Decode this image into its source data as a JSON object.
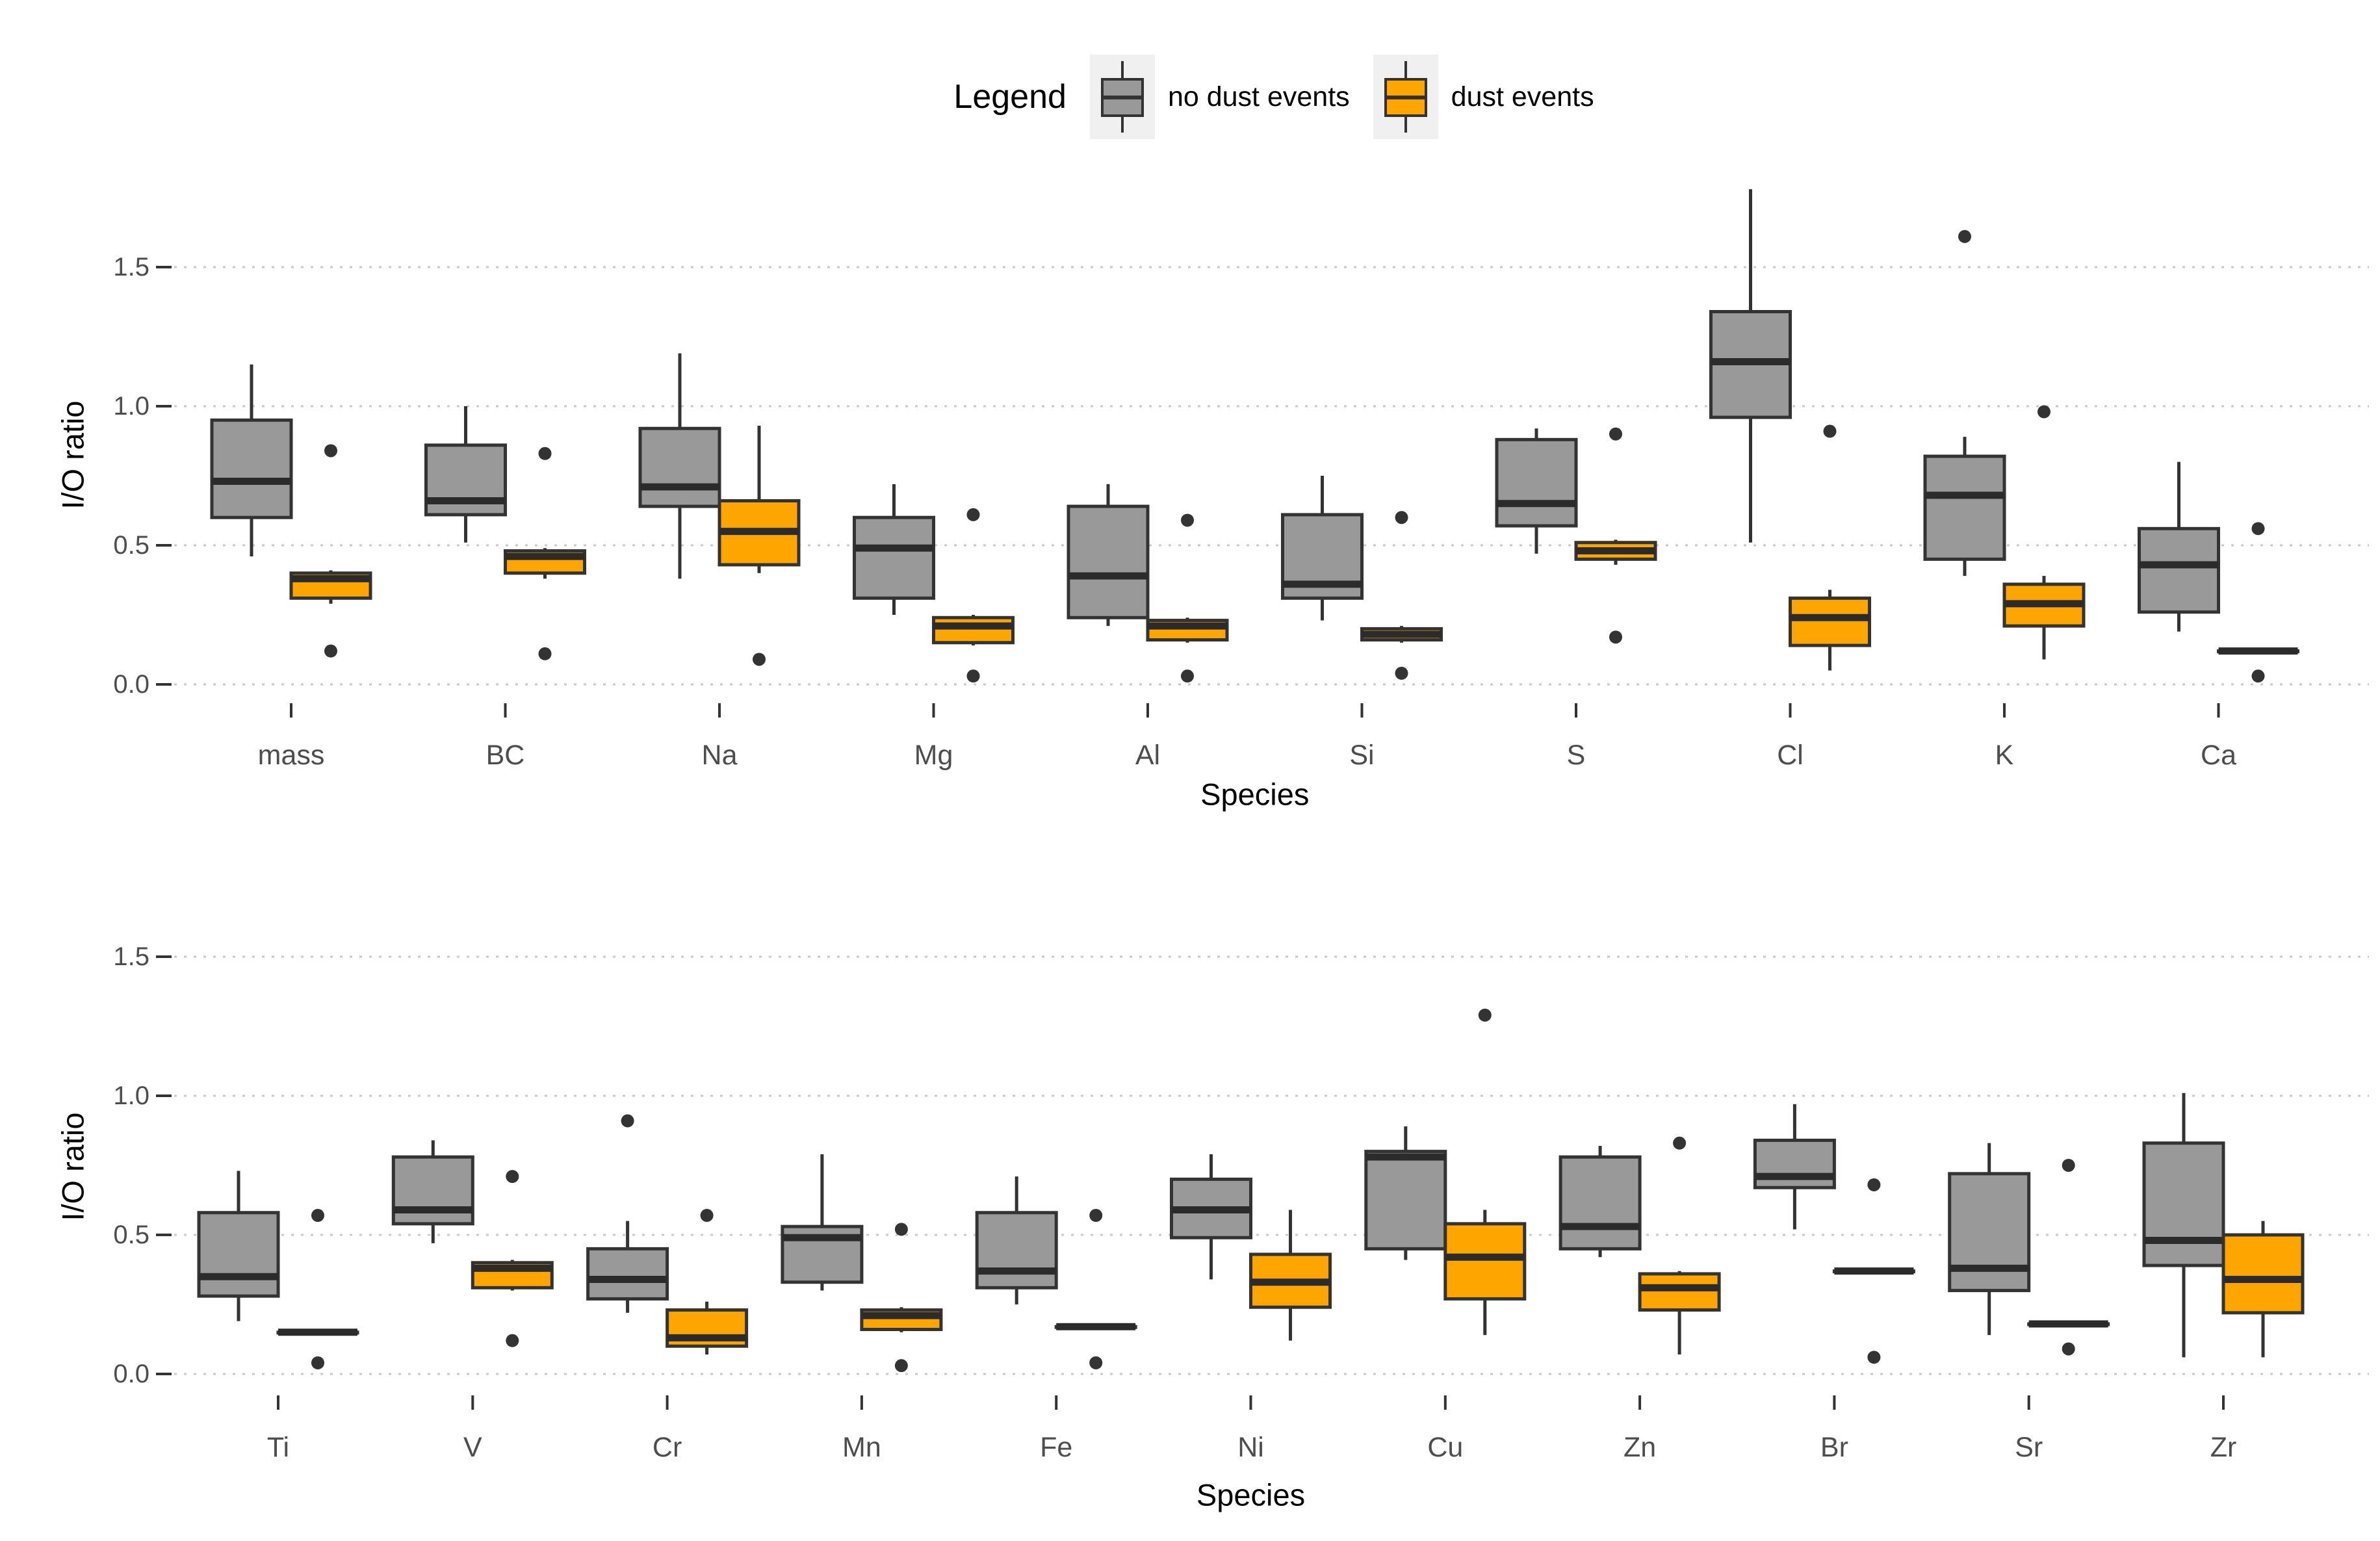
{
  "legend": {
    "title": "Legend",
    "items": [
      {
        "label": "no dust events",
        "color": "#999999"
      },
      {
        "label": "dust events",
        "color": "#FFA500"
      }
    ]
  },
  "colors": {
    "box_border": "#333333",
    "median_line": "#2b2b2b",
    "outlier_dot": "#333333",
    "gridline": "#c9c9c9",
    "tick_mark": "#333333",
    "tick_label": "#4d4d4d",
    "axis_title": "#000000",
    "background": "#ffffff",
    "legend_key_bg": "#f0f0f0"
  },
  "chart_data": {
    "type": "boxplot",
    "title": "",
    "legend_title": "Legend",
    "legend_position": "top-center",
    "grid": "horizontal-dotted",
    "series_names": [
      "no dust events",
      "dust events"
    ],
    "panels": [
      {
        "id": "top",
        "xlabel": "Species",
        "ylabel": "I/O ratio",
        "yticks": [
          0.0,
          0.5,
          1.0,
          1.5
        ],
        "ylim": [
          -0.15,
          1.9
        ],
        "categories": [
          "mass",
          "BC",
          "Na",
          "Mg",
          "Al",
          "Si",
          "S",
          "Cl",
          "K",
          "Ca"
        ],
        "series": [
          {
            "name": "no dust events",
            "color": "#999999",
            "boxes": [
              {
                "min": 0.46,
                "q1": 0.6,
                "med": 0.73,
                "q3": 0.95,
                "max": 1.15,
                "outliers": []
              },
              {
                "min": 0.51,
                "q1": 0.61,
                "med": 0.66,
                "q3": 0.86,
                "max": 1.0,
                "outliers": []
              },
              {
                "min": 0.38,
                "q1": 0.64,
                "med": 0.71,
                "q3": 0.92,
                "max": 1.19,
                "outliers": []
              },
              {
                "min": 0.25,
                "q1": 0.31,
                "med": 0.49,
                "q3": 0.6,
                "max": 0.72,
                "outliers": []
              },
              {
                "min": 0.21,
                "q1": 0.24,
                "med": 0.39,
                "q3": 0.64,
                "max": 0.72,
                "outliers": []
              },
              {
                "min": 0.23,
                "q1": 0.31,
                "med": 0.36,
                "q3": 0.61,
                "max": 0.75,
                "outliers": []
              },
              {
                "min": 0.47,
                "q1": 0.57,
                "med": 0.65,
                "q3": 0.88,
                "max": 0.92,
                "outliers": []
              },
              {
                "min": 0.51,
                "q1": 0.96,
                "med": 1.16,
                "q3": 1.34,
                "max": 1.78,
                "outliers": []
              },
              {
                "min": 0.39,
                "q1": 0.45,
                "med": 0.68,
                "q3": 0.82,
                "max": 0.89,
                "outliers": [
                  1.61
                ]
              },
              {
                "min": 0.19,
                "q1": 0.26,
                "med": 0.43,
                "q3": 0.56,
                "max": 0.8,
                "outliers": []
              }
            ]
          },
          {
            "name": "dust events",
            "color": "#FFA500",
            "boxes": [
              {
                "min": 0.29,
                "q1": 0.31,
                "med": 0.38,
                "q3": 0.4,
                "max": 0.41,
                "outliers": [
                  0.84,
                  0.12
                ]
              },
              {
                "min": 0.38,
                "q1": 0.4,
                "med": 0.46,
                "q3": 0.48,
                "max": 0.49,
                "outliers": [
                  0.83,
                  0.11
                ]
              },
              {
                "min": 0.4,
                "q1": 0.43,
                "med": 0.55,
                "q3": 0.66,
                "max": 0.93,
                "outliers": [
                  0.09
                ]
              },
              {
                "min": 0.14,
                "q1": 0.15,
                "med": 0.21,
                "q3": 0.24,
                "max": 0.25,
                "outliers": [
                  0.61,
                  0.03
                ]
              },
              {
                "min": 0.15,
                "q1": 0.16,
                "med": 0.21,
                "q3": 0.23,
                "max": 0.24,
                "outliers": [
                  0.59,
                  0.03
                ]
              },
              {
                "min": 0.15,
                "q1": 0.16,
                "med": 0.18,
                "q3": 0.2,
                "max": 0.21,
                "outliers": [
                  0.6,
                  0.04
                ]
              },
              {
                "min": 0.43,
                "q1": 0.45,
                "med": 0.48,
                "q3": 0.51,
                "max": 0.52,
                "outliers": [
                  0.9,
                  0.17
                ]
              },
              {
                "min": 0.05,
                "q1": 0.14,
                "med": 0.24,
                "q3": 0.31,
                "max": 0.34,
                "outliers": [
                  0.91
                ]
              },
              {
                "min": 0.09,
                "q1": 0.21,
                "med": 0.29,
                "q3": 0.36,
                "max": 0.39,
                "outliers": [
                  0.98
                ]
              },
              {
                "min": 0.12,
                "q1": 0.12,
                "med": 0.12,
                "q3": 0.12,
                "max": 0.12,
                "outliers": [
                  0.56,
                  0.03
                ]
              }
            ]
          }
        ]
      },
      {
        "id": "bottom",
        "xlabel": "Species",
        "ylabel": "I/O ratio",
        "yticks": [
          0.0,
          0.5,
          1.0,
          1.5
        ],
        "ylim": [
          -0.12,
          1.55
        ],
        "categories": [
          "Ti",
          "V",
          "Cr",
          "Mn",
          "Fe",
          "Ni",
          "Cu",
          "Zn",
          "Br",
          "Sr",
          "Zr"
        ],
        "series": [
          {
            "name": "no dust events",
            "color": "#999999",
            "boxes": [
              {
                "min": 0.19,
                "q1": 0.28,
                "med": 0.35,
                "q3": 0.58,
                "max": 0.73,
                "outliers": []
              },
              {
                "min": 0.47,
                "q1": 0.54,
                "med": 0.59,
                "q3": 0.78,
                "max": 0.84,
                "outliers": []
              },
              {
                "min": 0.22,
                "q1": 0.27,
                "med": 0.34,
                "q3": 0.45,
                "max": 0.55,
                "outliers": [
                  0.91
                ]
              },
              {
                "min": 0.3,
                "q1": 0.33,
                "med": 0.49,
                "q3": 0.53,
                "max": 0.79,
                "outliers": []
              },
              {
                "min": 0.25,
                "q1": 0.31,
                "med": 0.37,
                "q3": 0.58,
                "max": 0.71,
                "outliers": []
              },
              {
                "min": 0.34,
                "q1": 0.49,
                "med": 0.59,
                "q3": 0.7,
                "max": 0.79,
                "outliers": []
              },
              {
                "min": 0.41,
                "q1": 0.45,
                "med": 0.78,
                "q3": 0.8,
                "max": 0.89,
                "outliers": []
              },
              {
                "min": 0.42,
                "q1": 0.45,
                "med": 0.53,
                "q3": 0.78,
                "max": 0.82,
                "outliers": []
              },
              {
                "min": 0.52,
                "q1": 0.67,
                "med": 0.71,
                "q3": 0.84,
                "max": 0.97,
                "outliers": []
              },
              {
                "min": 0.14,
                "q1": 0.3,
                "med": 0.38,
                "q3": 0.72,
                "max": 0.83,
                "outliers": []
              },
              {
                "min": 0.06,
                "q1": 0.39,
                "med": 0.48,
                "q3": 0.83,
                "max": 1.01,
                "outliers": []
              }
            ]
          },
          {
            "name": "dust events",
            "color": "#FFA500",
            "boxes": [
              {
                "min": 0.15,
                "q1": 0.15,
                "med": 0.15,
                "q3": 0.15,
                "max": 0.15,
                "outliers": [
                  0.57,
                  0.04
                ]
              },
              {
                "min": 0.3,
                "q1": 0.31,
                "med": 0.38,
                "q3": 0.4,
                "max": 0.41,
                "outliers": [
                  0.71,
                  0.12
                ]
              },
              {
                "min": 0.07,
                "q1": 0.1,
                "med": 0.13,
                "q3": 0.23,
                "max": 0.26,
                "outliers": [
                  0.57
                ]
              },
              {
                "min": 0.15,
                "q1": 0.16,
                "med": 0.21,
                "q3": 0.23,
                "max": 0.24,
                "outliers": [
                  0.52,
                  0.03
                ]
              },
              {
                "min": 0.17,
                "q1": 0.17,
                "med": 0.17,
                "q3": 0.17,
                "max": 0.17,
                "outliers": [
                  0.57,
                  0.04
                ]
              },
              {
                "min": 0.12,
                "q1": 0.24,
                "med": 0.33,
                "q3": 0.43,
                "max": 0.59,
                "outliers": []
              },
              {
                "min": 0.14,
                "q1": 0.27,
                "med": 0.42,
                "q3": 0.54,
                "max": 0.59,
                "outliers": [
                  1.29
                ]
              },
              {
                "min": 0.07,
                "q1": 0.23,
                "med": 0.31,
                "q3": 0.36,
                "max": 0.37,
                "outliers": [
                  0.83
                ]
              },
              {
                "min": 0.37,
                "q1": 0.37,
                "med": 0.37,
                "q3": 0.37,
                "max": 0.37,
                "outliers": [
                  0.68,
                  0.06
                ]
              },
              {
                "min": 0.18,
                "q1": 0.18,
                "med": 0.18,
                "q3": 0.18,
                "max": 0.18,
                "outliers": [
                  0.75,
                  0.09
                ]
              },
              {
                "min": 0.06,
                "q1": 0.22,
                "med": 0.34,
                "q3": 0.5,
                "max": 0.55,
                "outliers": []
              }
            ]
          }
        ]
      }
    ]
  }
}
